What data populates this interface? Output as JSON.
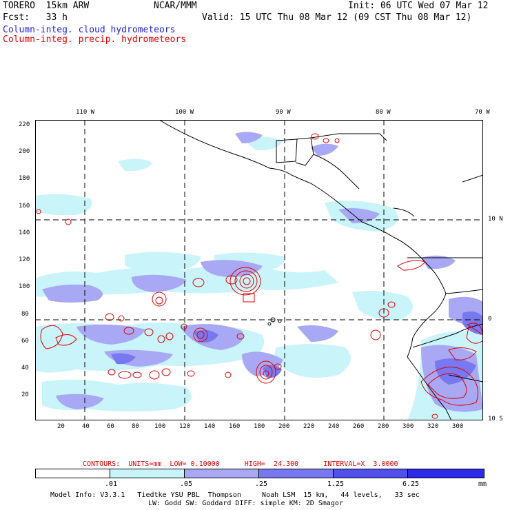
{
  "header": {
    "model": "TORERO  15km ARW",
    "org": "NCAR/MMM",
    "init": "Init: 06 UTC Wed 07 Mar 12",
    "fcst": "Fcst:   33 h",
    "valid": "Valid: 15 UTC Thu 08 Mar 12 (09 CST Thu 08 Mar 12)",
    "field1": "Column-integ. cloud hydrometeors",
    "field2": "Column-integ. precip. hydrometeors"
  },
  "map": {
    "lon_labels": [
      "110 W",
      "100 W",
      "90 W",
      "80 W",
      "70 W"
    ],
    "lat_labels": [
      "10 N",
      "0",
      "10 S"
    ],
    "y_ticks": [
      "220",
      "200",
      "180",
      "160",
      "140",
      "120",
      "100",
      "80",
      "60",
      "40",
      "20"
    ],
    "x_ticks": [
      "20",
      "40",
      "60",
      "80",
      "100",
      "120",
      "140",
      "160",
      "180",
      "200",
      "220",
      "240",
      "260",
      "280",
      "300",
      "320"
    ],
    "colors": {
      "cloud_light": "#c8f4fa",
      "cloud_mid": "#a8a8f4",
      "cloud_dark": "#7878f0",
      "precip_contour": "#e00000"
    }
  },
  "footer": {
    "contours": "CONTOURS:  UNITS=mm  LOW= 0.10000      HIGH=  24.300      INTERVAL=X  3.0000",
    "colorbar": {
      "labels": [
        ".01",
        ".05",
        ".25",
        "1.25",
        "6.25",
        "mm"
      ],
      "colors": [
        "#ffffff",
        "#c8f4fa",
        "#a8a8f4",
        "#7878f0",
        "#5050ec",
        "#2a2ae8"
      ]
    },
    "model_info_1": "Model Info: V3.3.1   Tiedtke YSU PBL  Thompson     Noah LSM  15 km,   44 levels,   33 sec",
    "model_info_2": "LW: Godd SW: Goddard DIFF: simple KM: 2D Smagor"
  }
}
